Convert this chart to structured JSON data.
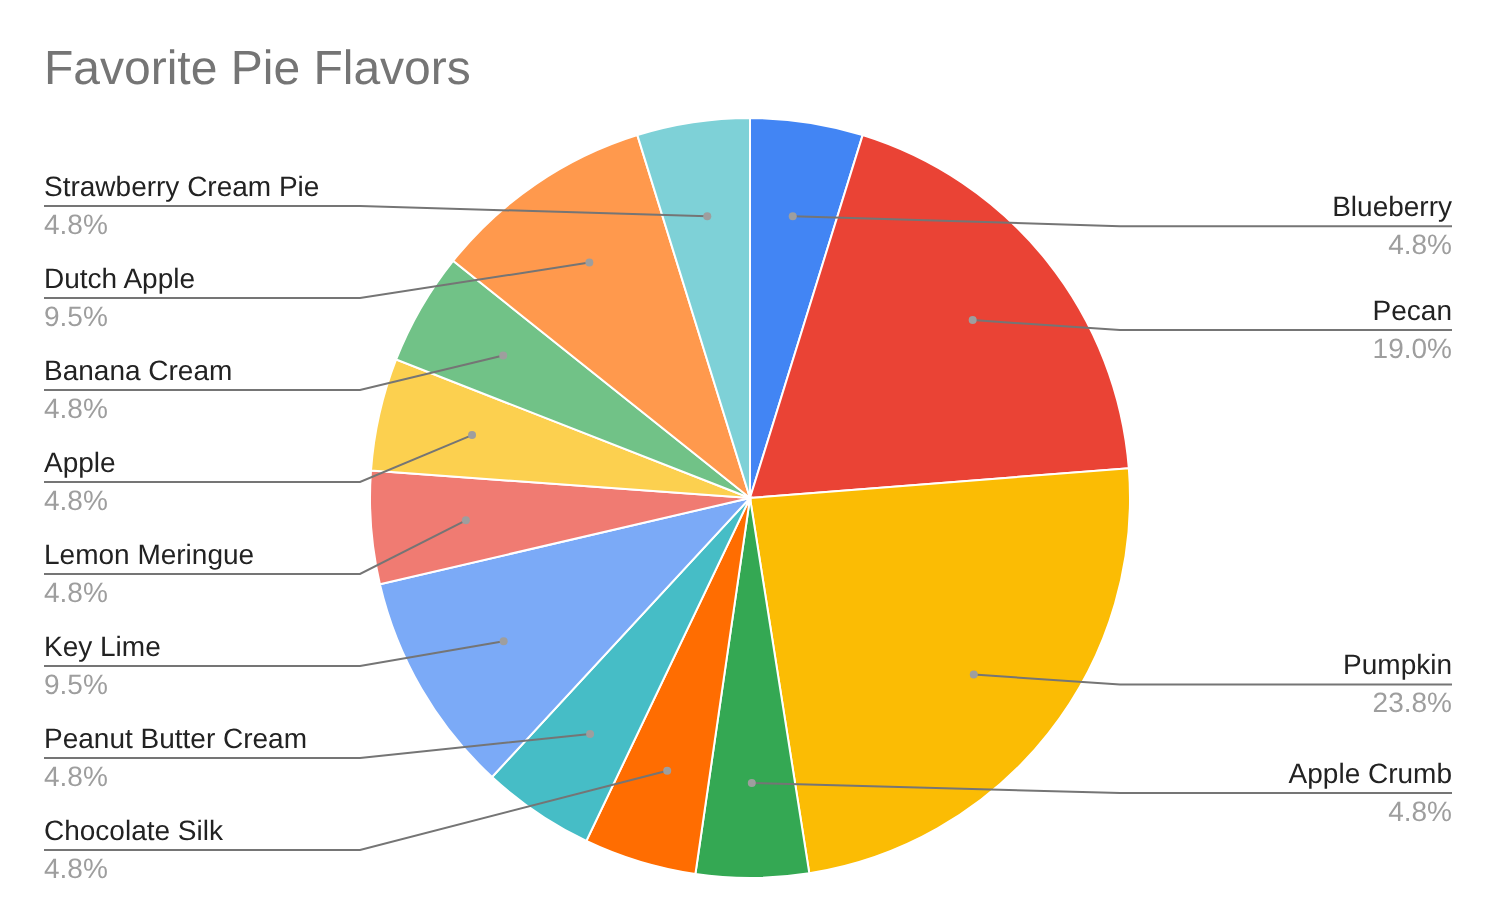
{
  "chart_data": {
    "type": "pie",
    "title": "Favorite Pie Flavors",
    "categories": [
      "Blueberry",
      "Pecan",
      "Pumpkin",
      "Apple Crumb",
      "Chocolate Silk",
      "Peanut Butter Cream",
      "Key Lime",
      "Lemon Meringue",
      "Apple",
      "Banana Cream",
      "Dutch Apple",
      "Strawberry Cream Pie"
    ],
    "values": [
      4.8,
      19.0,
      23.8,
      4.8,
      4.8,
      4.8,
      9.5,
      4.8,
      4.8,
      4.8,
      9.5,
      4.8
    ],
    "value_labels": [
      "4.8%",
      "19.0%",
      "23.8%",
      "4.8%",
      "4.8%",
      "4.8%",
      "9.5%",
      "4.8%",
      "4.8%",
      "4.8%",
      "9.5%",
      "4.8%"
    ],
    "colors": [
      "#4285f4",
      "#ea4335",
      "#fbbc04",
      "#34a853",
      "#ff6d01",
      "#46bdc6",
      "#7baaf7",
      "#f07b72",
      "#fcd04f",
      "#71c287",
      "#ff994d",
      "#7ed1d7"
    ]
  }
}
